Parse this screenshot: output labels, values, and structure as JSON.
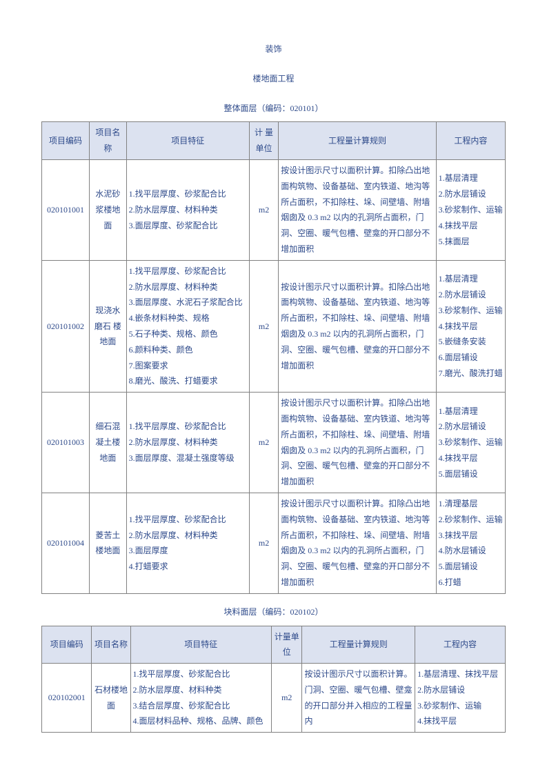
{
  "titles": {
    "main": "装饰",
    "sub": "楼地面工程",
    "section1": "整体面层（编码：020101）",
    "section2": "块料面层（编码：020102）"
  },
  "headers": {
    "code": "项目编码",
    "name": "项目名称",
    "feature": "项目特征",
    "unit": "计 量 单位",
    "rule": "工程量计算规则",
    "content": "工程内容"
  },
  "t1rows": [
    {
      "code": "020101001",
      "name": "水泥砂浆楼地面",
      "features": [
        "1.找平层厚度、砂浆配合比",
        "2.防水层厚度、材料种类",
        "3.面层厚度、砂浆配合比"
      ],
      "unit": "m2",
      "rule": "按设计图示尺寸以面积计算。扣除凸出地面构筑物、设备基础、室内铁道、地沟等所占面积，不扣除柱、垛、间壁墙、附墙烟囱及 0.3 m2 以内的孔洞所占面积，门洞、空圈、暖气包槽、壁龛的开口部分不增加面积",
      "contents": [
        "1.基层清理",
        "2.防水层铺设",
        "3.砂浆制作、运输",
        "4.抹找平层",
        "5.抹面层"
      ]
    },
    {
      "code": "020101002",
      "name": "现浇水磨石 楼地面",
      "features": [
        "1.找平层厚度、砂浆配合比",
        "2.防水层厚度、材料种类",
        "3.面层厚度、水泥石子浆配合比",
        "4.嵌条材料种类、规格",
        "5.石子种类、规格、颜色",
        "6.颜料种类、颜色",
        "7.图案要求",
        "8.磨光、酸洗、打蜡要求"
      ],
      "unit": "m2",
      "rule": "按设计图示尺寸以面积计算。扣除凸出地面构筑物、设备基础、室内铁道、地沟等所占面积，不扣除柱、垛、间壁墙、附墙烟囱及 0.3 m2 以内的孔洞所占面积，门洞、空圈、暖气包槽、壁龛的开口部分不增加面积",
      "contents": [
        "1.基层清理",
        "2.防水层铺设",
        "3.砂浆制作、运输",
        "4.抹找平层",
        "5.嵌缝条安装",
        "6.面层铺设",
        "7.磨光、酸洗打蜡"
      ]
    },
    {
      "code": "020101003",
      "name": "细石混凝土楼地面",
      "features": [
        "1.找平层厚度、砂浆配合比",
        "2.防水层厚度、材料种类",
        "3.面层厚度、混凝土强度等级"
      ],
      "unit": "m2",
      "rule": "按设计图示尺寸以面积计算。扣除凸出地面构筑物、设备基础、室内铁道、地沟等所占面积，不扣除柱、垛、间壁墙、附墙烟囱及 0.3 m2 以内的孔洞所占面积，门洞、空圈、暖气包槽、壁龛的开口部分不增加面积",
      "contents": [
        "1.基层清理",
        "2.防水层铺设",
        "3.砂浆制作、运输",
        "4.抹找平层",
        "5.面层铺设"
      ]
    },
    {
      "code": "020101004",
      "name": "菱苦土楼地面",
      "features": [
        "1.找平层厚度、砂浆配合比",
        "2.防水层厚度、材料种类",
        "3.面层厚度",
        "4.打蜡要求"
      ],
      "unit": "m2",
      "rule": "按设计图示尺寸以面积计算。扣除凸出地面构筑物、设备基础、室内铁道、地沟等所占面积，不扣除柱、垛、间壁墙、附墙烟囱及 0.3 m2 以内的孔洞所占面积，门洞、空圈、暖气包槽、壁龛的开口部分不增加面积",
      "contents": [
        "1.清理基层",
        "2.砂浆制作、运输",
        "3.抹找平层",
        "4.防水层铺设",
        "5.面层铺设",
        "6.打蜡"
      ]
    }
  ],
  "t2rows": [
    {
      "code": "020102001",
      "name": "石材楼地面",
      "features": [
        "1.找平层厚度、砂浆配合比",
        "2.防水层厚度、材料种类",
        "3.结合层厚度、砂浆配合比",
        "4.面层材料品种、规格、品牌、颜色"
      ],
      "unit": "m2",
      "rule": "按设计图示尺寸以面积计算。门洞、空圈、暖气包槽、壁龛的开口部分并入相应的工程量内",
      "contents": [
        "1.基层清理、抹找平层",
        "2.防水层铺设",
        "3.砂浆制作、运输",
        "4.抹找平层"
      ]
    }
  ],
  "colors": {
    "text": "#2e4a8a",
    "headerBg": "#dce2f0",
    "border": "#808080",
    "bg": "#ffffff"
  }
}
